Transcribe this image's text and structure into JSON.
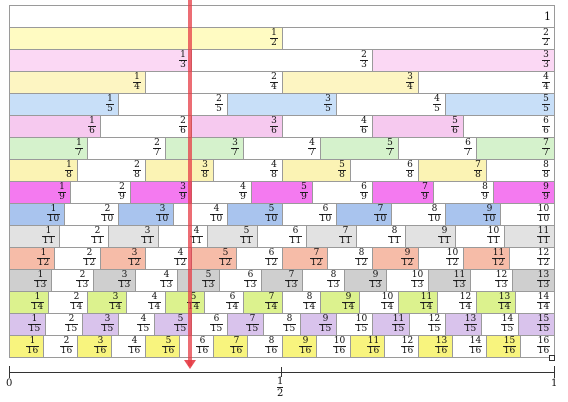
{
  "wall": {
    "rows": [
      1,
      2,
      3,
      4,
      5,
      6,
      7,
      8,
      9,
      10,
      11,
      12,
      13,
      14,
      15,
      16
    ],
    "colors": {
      "1": "#ffffff",
      "2": "#fffbc2",
      "3": "#fbd8f4",
      "4": "#fdf5c2",
      "5": "#c8dff8",
      "6": "#f6c9ef",
      "7": "#d5f2cc",
      "8": "#fbf3b4",
      "9": "#f47af0",
      "10": "#a9c4ee",
      "11": "#e2e2e2",
      "12": "#f6bca8",
      "13": "#cfcfcf",
      "14": "#dcf28e",
      "15": "#d9c3ec",
      "16": "#f8f47e"
    },
    "whole_label": "1"
  },
  "axis": {
    "start_label": "0",
    "end_label": "1",
    "mid_numerator": "1",
    "mid_denominator": "2"
  },
  "pointer": {
    "value": 0.332,
    "color": "#e63c46"
  }
}
